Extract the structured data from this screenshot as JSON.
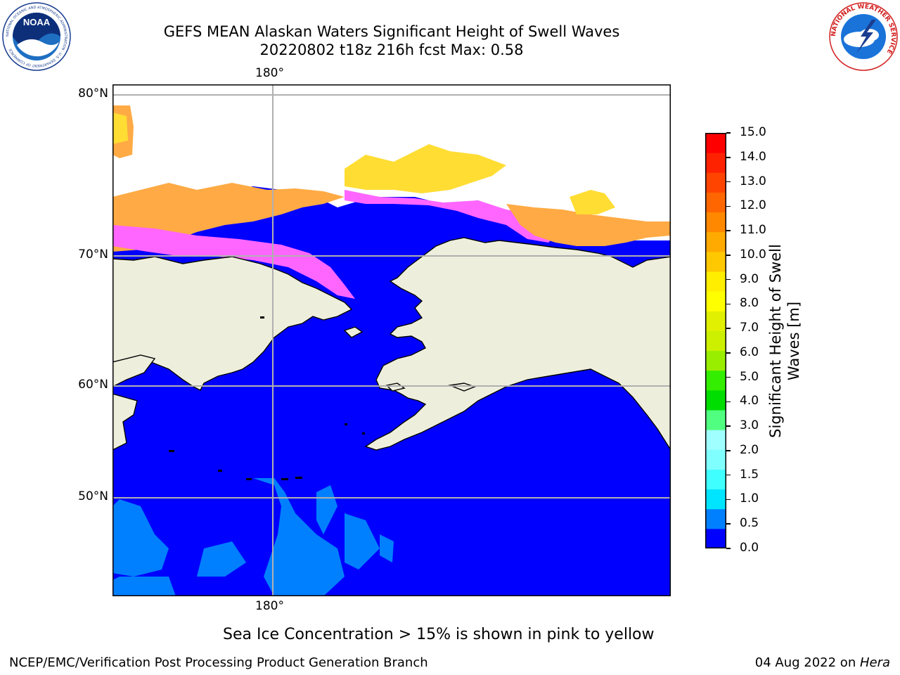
{
  "title": {
    "line1": "GEFS MEAN Alaskan Waters Significant Height of Swell Waves",
    "line2": "20220802 t18z 216h fcst   Max: 0.58"
  },
  "logos": {
    "noaa": {
      "text": "NOAA",
      "ring_text": "NATIONAL OCEANIC AND ATMOSPHERIC ADMINISTRATION · U.S. DEPARTMENT OF COMMERCE",
      "icon": "noaa-logo"
    },
    "nws": {
      "ring_text": "NATIONAL WEATHER SERVICE",
      "icon": "nws-logo"
    }
  },
  "map": {
    "lon_labels": {
      "top": "180°",
      "bottom": "180°"
    },
    "lat_labels": [
      "80°N",
      "70°N",
      "60°N",
      "50°N"
    ],
    "colors": {
      "ocean": "#0000ff",
      "land": "#eeeedd",
      "swell_low": "#0080ff",
      "ice_pink": "#ff66ff",
      "ice_orange": "#ffaa44",
      "ice_yellow": "#ffdd33",
      "gridline": "#b0b0b0"
    }
  },
  "colorbar": {
    "title": "Significant Height of Swell Waves [m]",
    "ticks": [
      "15.0",
      "14.0",
      "13.0",
      "12.0",
      "11.0",
      "10.0",
      "9.0",
      "8.0",
      "7.0",
      "6.0",
      "5.0",
      "4.0",
      "3.0",
      "2.0",
      "1.5",
      "1.0",
      "0.5",
      "0.0"
    ],
    "colors": [
      "#0000ff",
      "#0080ff",
      "#00e5ff",
      "#40ffff",
      "#80ffff",
      "#a0ffff",
      "#50ff80",
      "#00dd00",
      "#33ee00",
      "#99ee00",
      "#ccf000",
      "#e0f000",
      "#ffff00",
      "#ffee00",
      "#ffc800",
      "#ffaa00",
      "#ff8800",
      "#ff6600",
      "#ff4400",
      "#ff2200",
      "#ff0000"
    ]
  },
  "note": "Sea Ice Concentration > 15% is shown in pink to yellow",
  "footer": {
    "left": "NCEP/EMC/Verification Post Processing Product Generation Branch",
    "date": "04 Aug 2022 on ",
    "machine": "Hera"
  }
}
